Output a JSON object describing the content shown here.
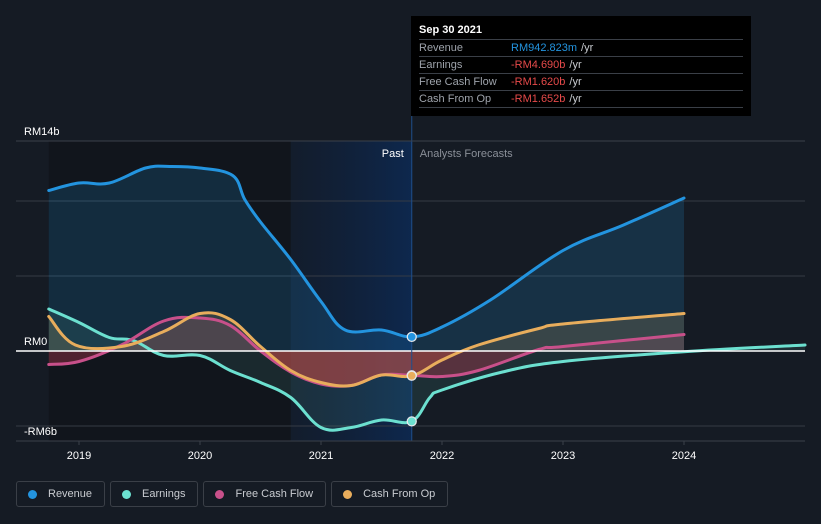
{
  "tooltip": {
    "title": "Sep 30 2021",
    "rows": [
      {
        "name": "Revenue",
        "value": "RM942.823m",
        "unit": "/yr",
        "color": "#2394df"
      },
      {
        "name": "Earnings",
        "value": "-RM4.690b",
        "unit": "/yr",
        "color": "#e64a4a"
      },
      {
        "name": "Free Cash Flow",
        "value": "-RM1.620b",
        "unit": "/yr",
        "color": "#e64a4a"
      },
      {
        "name": "Cash From Op",
        "value": "-RM1.652b",
        "unit": "/yr",
        "color": "#e64a4a"
      }
    ]
  },
  "labels": {
    "past": "Past",
    "forecast": "Analysts Forecasts"
  },
  "legend": [
    {
      "name": "Revenue",
      "color": "#2394df"
    },
    {
      "name": "Earnings",
      "color": "#6ce0d0"
    },
    {
      "name": "Free Cash Flow",
      "color": "#c8508a"
    },
    {
      "name": "Cash From Op",
      "color": "#e8ad5c"
    }
  ],
  "chart_data": {
    "type": "line",
    "title": "",
    "xlabel": "",
    "ylabel": "",
    "currency": "RM",
    "unit": "billions",
    "x_ticks": [
      "2019",
      "2020",
      "2021",
      "2022",
      "2023",
      "2024"
    ],
    "x_tick_values": [
      2019,
      2020,
      2021,
      2022,
      2023,
      2024
    ],
    "xlim": [
      2018.75,
      2025.0
    ],
    "y_ticks": [
      {
        "value": 14,
        "label": "RM14b"
      },
      {
        "value": 0,
        "label": "RM0"
      },
      {
        "value": -6,
        "label": "-RM6b"
      }
    ],
    "gridlines": [
      14,
      10,
      5,
      0,
      -5
    ],
    "ylim": [
      -6,
      14
    ],
    "past_end": 2021.75,
    "highlight_start": 2020.75,
    "marker_date": "Sep 30 2021",
    "legend_position": "bottom",
    "series": [
      {
        "name": "Revenue",
        "color": "#2394df",
        "x": [
          2018.75,
          2019.0,
          2019.25,
          2019.55,
          2019.75,
          2020.0,
          2020.27,
          2020.37,
          2020.5,
          2020.75,
          2021.0,
          2021.2,
          2021.5,
          2021.75,
          2022.0,
          2022.4,
          2023.0,
          2023.5,
          2024.0
        ],
        "y": [
          10.7,
          11.2,
          11.2,
          12.2,
          12.3,
          12.2,
          11.7,
          10.1,
          8.6,
          6.1,
          3.3,
          1.4,
          1.4,
          0.943,
          1.6,
          3.4,
          6.7,
          8.4,
          10.2
        ]
      },
      {
        "name": "Earnings",
        "color": "#6ce0d0",
        "x": [
          2018.75,
          2019.0,
          2019.25,
          2019.45,
          2019.7,
          2020.0,
          2020.25,
          2020.5,
          2020.75,
          2021.0,
          2021.25,
          2021.5,
          2021.75,
          2021.9,
          2022.0,
          2022.5,
          2023.0,
          2024.0,
          2025.0
        ],
        "y": [
          2.8,
          1.9,
          0.9,
          0.7,
          -0.3,
          -0.3,
          -1.3,
          -2.1,
          -3.1,
          -5.1,
          -5.1,
          -4.6,
          -4.69,
          -3.1,
          -2.6,
          -1.4,
          -0.7,
          -0.05,
          0.4
        ]
      },
      {
        "name": "Free Cash Flow",
        "color": "#c8508a",
        "x": [
          2018.75,
          2019.0,
          2019.35,
          2019.7,
          2020.0,
          2020.25,
          2020.5,
          2020.75,
          2021.0,
          2021.25,
          2021.5,
          2021.75,
          2022.0,
          2022.3,
          2022.8,
          2023.0,
          2024.0
        ],
        "y": [
          -0.9,
          -0.7,
          0.4,
          2.0,
          2.2,
          1.7,
          0.0,
          -1.4,
          -2.2,
          -2.3,
          -1.6,
          -1.62,
          -1.7,
          -1.3,
          0.1,
          0.3,
          1.1
        ]
      },
      {
        "name": "Cash From Op",
        "color": "#e8ad5c",
        "x": [
          2018.75,
          2018.97,
          2019.35,
          2019.7,
          2020.0,
          2020.25,
          2020.5,
          2020.75,
          2021.0,
          2021.25,
          2021.5,
          2021.75,
          2022.0,
          2022.3,
          2022.8,
          2023.0,
          2024.0
        ],
        "y": [
          2.3,
          0.4,
          0.3,
          1.3,
          2.5,
          2.1,
          0.3,
          -1.3,
          -2.1,
          -2.3,
          -1.6,
          -1.652,
          -0.6,
          0.4,
          1.5,
          1.8,
          2.5
        ]
      }
    ]
  }
}
